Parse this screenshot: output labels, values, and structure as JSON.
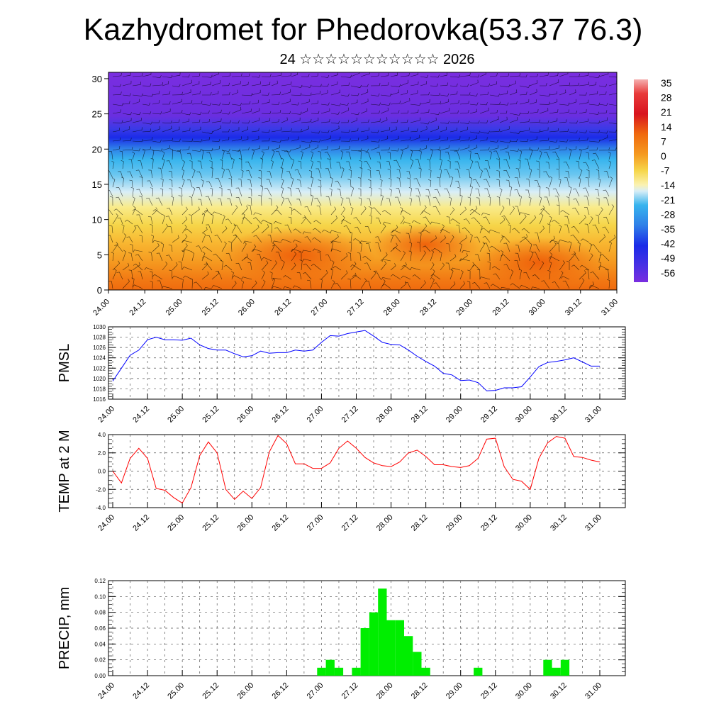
{
  "title": "Kazhydromet for Phedorovka(53.37 76.3)",
  "subtitle": "24 ☆☆☆☆☆☆☆☆☆☆☆ 2026",
  "chart_data": [
    {
      "type": "heatmap",
      "description_none": "",
      "x_tick_labels": [
        "24.00",
        "24.12",
        "25.00",
        "25.12",
        "26.00",
        "26.12",
        "27.00",
        "27.12",
        "28.00",
        "28.12",
        "29.00",
        "29.12",
        "30.00",
        "30.12",
        "31.00"
      ],
      "y_ticks": [
        0,
        5,
        10,
        15,
        20,
        25,
        30
      ],
      "ylim": [
        0,
        30.9
      ],
      "colorbar_labels": [
        "35",
        "28",
        "21",
        "14",
        "7",
        "0",
        "-7",
        "-14",
        "-21",
        "-28",
        "-35",
        "-42",
        "-49",
        "-56"
      ],
      "colors": {
        "cold": "#7a2ee0",
        "blue": "#1a2be8",
        "sky": "#37b4ee",
        "pale": "#d9eef7",
        "yellow": "#f6d64a",
        "orange": "#f59a20",
        "deep": "#f06a0e",
        "red": "#d8141e"
      }
    },
    {
      "type": "line",
      "ylabel": "PMSL",
      "ylim": [
        1016,
        1030
      ],
      "y_ticks": [
        1016,
        1018,
        1020,
        1022,
        1024,
        1026,
        1028,
        1030
      ],
      "x_tick_labels": [
        "24.00",
        "24.12",
        "25.00",
        "25.12",
        "26.00",
        "26.12",
        "27.00",
        "27.12",
        "28.00",
        "28.12",
        "29.00",
        "29.12",
        "30.00",
        "30.12",
        "31.00"
      ],
      "series": [
        {
          "color": "#0000ff",
          "x": [
            0,
            3,
            6,
            9,
            12,
            15,
            18,
            21,
            24,
            27,
            30,
            33,
            36,
            39,
            42,
            45,
            48,
            51,
            54,
            57,
            60,
            63,
            66,
            69,
            72,
            75,
            78,
            81,
            84,
            87,
            90,
            93,
            96,
            99,
            102,
            105,
            108,
            111,
            114,
            117,
            120,
            123,
            126,
            129,
            132,
            135,
            138,
            141,
            144,
            147,
            150,
            153,
            156,
            159,
            162,
            165,
            168
          ],
          "values": [
            1019.5,
            1022.0,
            1024.5,
            1025.5,
            1027.5,
            1028.0,
            1027.5,
            1027.5,
            1027.4,
            1027.8,
            1026.5,
            1025.8,
            1025.5,
            1025.5,
            1024.8,
            1024.2,
            1024.4,
            1025.3,
            1024.9,
            1025.0,
            1025.0,
            1025.5,
            1025.3,
            1025.5,
            1027.0,
            1028.3,
            1028.2,
            1028.7,
            1029.0,
            1029.3,
            1028.2,
            1027.0,
            1026.6,
            1026.5,
            1025.5,
            1024.3,
            1023.3,
            1022.4,
            1021.0,
            1020.7,
            1019.6,
            1019.7,
            1019.2,
            1017.6,
            1017.7,
            1018.2,
            1018.2,
            1018.4,
            1020.3,
            1022.3,
            1023.1,
            1023.3,
            1023.6,
            1024.0,
            1023.2,
            1022.4,
            1022.4
          ]
        }
      ]
    },
    {
      "type": "line",
      "ylabel": "TEMP at 2 M",
      "ylim": [
        -4.0,
        4.0
      ],
      "y_ticks": [
        -4.0,
        -2.0,
        0.0,
        2.0,
        4.0
      ],
      "y_tick_labels": [
        "-4.0",
        "-2.0",
        "0.0",
        "2.0",
        "4.0"
      ],
      "x_tick_labels": [
        "24.00",
        "24.12",
        "25.00",
        "25.12",
        "26.00",
        "26.12",
        "27.00",
        "27.12",
        "28.00",
        "28.12",
        "29.00",
        "29.12",
        "30.00",
        "30.12",
        "31.00"
      ],
      "series": [
        {
          "color": "#ff0000",
          "x": [
            0,
            3,
            6,
            9,
            12,
            15,
            18,
            21,
            24,
            27,
            30,
            33,
            36,
            39,
            42,
            45,
            48,
            51,
            54,
            57,
            60,
            63,
            66,
            69,
            72,
            75,
            78,
            81,
            84,
            87,
            90,
            93,
            96,
            99,
            102,
            105,
            108,
            111,
            114,
            117,
            120,
            123,
            126,
            129,
            132,
            135,
            138,
            141,
            144,
            147,
            150,
            153,
            156,
            159,
            162,
            165,
            168
          ],
          "values": [
            0.0,
            -1.3,
            1.4,
            2.5,
            1.4,
            -1.9,
            -2.1,
            -2.9,
            -3.5,
            -1.8,
            1.7,
            3.2,
            2.0,
            -2.0,
            -3.1,
            -2.2,
            -3.0,
            -1.8,
            2.1,
            3.9,
            3.0,
            0.8,
            0.8,
            0.3,
            0.3,
            0.9,
            2.5,
            3.3,
            2.5,
            1.5,
            0.9,
            0.6,
            0.5,
            1.0,
            2.0,
            2.3,
            1.6,
            0.7,
            0.7,
            0.5,
            0.4,
            0.6,
            1.4,
            3.5,
            3.6,
            0.5,
            -0.9,
            -1.1,
            -2.0,
            1.4,
            3.1,
            3.8,
            3.6,
            1.6,
            1.5,
            1.2,
            1.0
          ]
        }
      ]
    },
    {
      "type": "bar",
      "ylabel": "PRECIP, mm",
      "ylim": [
        0,
        0.12
      ],
      "y_ticks": [
        0,
        0.02,
        0.04,
        0.06,
        0.08,
        0.1,
        0.12
      ],
      "y_tick_labels": [
        "0.00",
        "0.02",
        "0.04",
        "0.06",
        "0.08",
        "0.10",
        "0.12"
      ],
      "x_tick_labels": [
        "24.00",
        "24.12",
        "25.00",
        "25.12",
        "26.00",
        "26.12",
        "27.00",
        "27.12",
        "28.00",
        "28.12",
        "29.00",
        "29.12",
        "30.00",
        "30.12",
        "31.00"
      ],
      "bar_color": "#00ee00",
      "bars": [
        {
          "x": 72,
          "value": 0.01
        },
        {
          "x": 75,
          "value": 0.02
        },
        {
          "x": 78,
          "value": 0.01
        },
        {
          "x": 84,
          "value": 0.01
        },
        {
          "x": 87,
          "value": 0.06
        },
        {
          "x": 90,
          "value": 0.08
        },
        {
          "x": 93,
          "value": 0.11
        },
        {
          "x": 96,
          "value": 0.07
        },
        {
          "x": 99,
          "value": 0.07
        },
        {
          "x": 102,
          "value": 0.05
        },
        {
          "x": 105,
          "value": 0.03
        },
        {
          "x": 108,
          "value": 0.01
        },
        {
          "x": 126,
          "value": 0.01
        },
        {
          "x": 150,
          "value": 0.02
        },
        {
          "x": 153,
          "value": 0.01
        },
        {
          "x": 156,
          "value": 0.02
        }
      ]
    }
  ]
}
